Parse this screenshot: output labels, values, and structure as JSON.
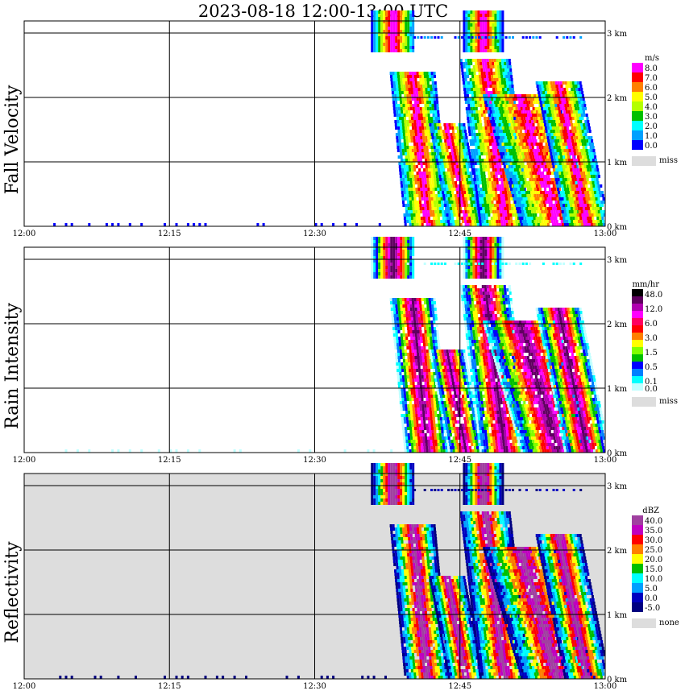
{
  "title": "2023-08-18  12:00-13:00 UTC",
  "chart_data": [
    {
      "type": "heatmap",
      "ylabel": "Fall Velocity",
      "x_ticks": [
        "12:00",
        "12:15",
        "12:30",
        "12:45",
        "13:00"
      ],
      "y_ticks": [
        "0 km",
        "1 km",
        "2 km",
        "3 km"
      ],
      "xlim": [
        "12:00",
        "13:00"
      ],
      "ylim_km": [
        0,
        3.4
      ],
      "grid": true,
      "legend": {
        "unit": "m/s",
        "placement": "right",
        "labels": [
          "8.0",
          "7.0",
          "6.0",
          "5.0",
          "4.0",
          "3.0",
          "2.0",
          "1.0",
          "0.0"
        ],
        "colors": [
          "#ff00ff",
          "#ff0000",
          "#ff8000",
          "#ffff00",
          "#b4ff00",
          "#00c000",
          "#00ffff",
          "#00a0ff",
          "#0000ff"
        ],
        "missing_label": "miss",
        "missing_color": "#dddddd"
      }
    },
    {
      "type": "heatmap",
      "ylabel": "Rain Intensity",
      "x_ticks": [
        "12:00",
        "12:15",
        "12:30",
        "12:45",
        "13:00"
      ],
      "y_ticks": [
        "0 km",
        "1 km",
        "2 km",
        "3 km"
      ],
      "xlim": [
        "12:00",
        "13:00"
      ],
      "ylim_km": [
        0,
        3.4
      ],
      "grid": true,
      "legend": {
        "unit": "mm/hr",
        "placement": "right",
        "labels": [
          "48.0",
          "12.0",
          "6.0",
          "3.0",
          "1.5",
          "0.5",
          "0.1",
          "0.0"
        ],
        "label_rows": [
          0,
          2,
          4,
          6,
          8,
          10,
          12,
          13
        ],
        "colors": [
          "#000000",
          "#600060",
          "#b000b0",
          "#ff00ff",
          "#ff0060",
          "#ff0000",
          "#ff8000",
          "#ffff00",
          "#80ff00",
          "#00c000",
          "#0000ff",
          "#0080ff",
          "#00ffff",
          "#c0ffff"
        ],
        "missing_label": "miss",
        "missing_color": "#dddddd"
      }
    },
    {
      "type": "heatmap",
      "ylabel": "Reflectivity",
      "x_ticks": [
        "12:00",
        "12:15",
        "12:30",
        "12:45",
        "13:00"
      ],
      "y_ticks": [
        "0 km",
        "1 km",
        "2 km",
        "3 km"
      ],
      "xlim": [
        "12:00",
        "13:00"
      ],
      "ylim_km": [
        0,
        3.4
      ],
      "grid": true,
      "background_color": "#dddddd",
      "legend": {
        "unit": "dBZ",
        "placement": "right",
        "labels": [
          "40.0",
          "35.0",
          "30.0",
          "25.0",
          "20.0",
          "15.0",
          "10.0",
          "5.0",
          "0.0",
          "-5.0"
        ],
        "colors": [
          "#a040a0",
          "#c000c0",
          "#ff0000",
          "#ff8000",
          "#ffff00",
          "#00c000",
          "#00ffff",
          "#00a0ff",
          "#0000c0",
          "#000080"
        ],
        "missing_label": "none",
        "missing_color": "#dddddd"
      }
    }
  ]
}
